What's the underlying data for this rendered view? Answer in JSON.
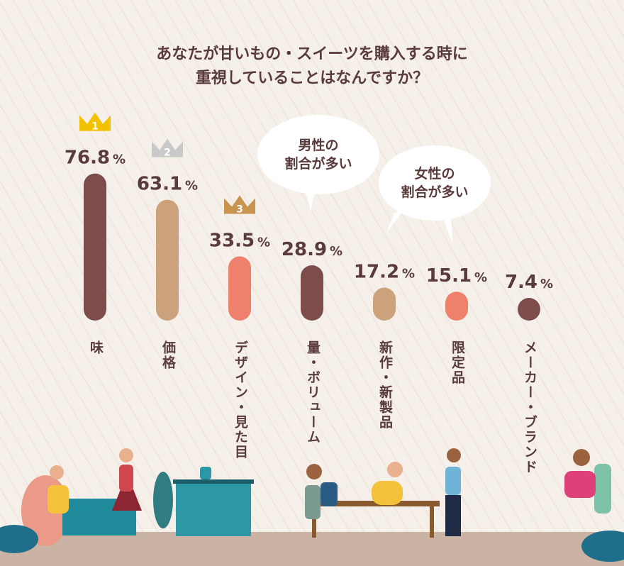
{
  "title": {
    "line1": "あなたが甘いもの・スイーツを購入する時に",
    "line2": "重視していることはなんですか？"
  },
  "chart_data": {
    "type": "bar",
    "title": "あなたが甘いもの・スイーツを購入する時に重視していることはなんですか？",
    "unit": "%",
    "ylim": [
      0,
      100
    ],
    "categories": [
      "味",
      "価格",
      "デザイン・見た目",
      "量・ボリューム",
      "新作・新製品",
      "限定品",
      "メーカー・ブランド"
    ],
    "values": [
      76.8,
      63.1,
      33.5,
      28.9,
      17.2,
      15.1,
      7.4
    ],
    "colors": [
      "#7d4d4d",
      "#cca27d",
      "#ef806c",
      "#7d4d4d",
      "#cca27d",
      "#ef806c",
      "#7d4d4d"
    ],
    "rank_badges": [
      {
        "rank": "1",
        "color": "#f2c200"
      },
      {
        "rank": "2",
        "color": "#c9c9c9"
      },
      {
        "rank": "3",
        "color": "#c8944f"
      }
    ],
    "grid": false
  },
  "annotations": {
    "male": {
      "line1": "男性の",
      "line2": "割合が多い"
    },
    "female": {
      "line1": "女性の",
      "line2": "割合が多い"
    }
  },
  "colors": {
    "text": "#5a3b3b",
    "background": "#f6f0ea",
    "floor": "#cab3a4"
  }
}
